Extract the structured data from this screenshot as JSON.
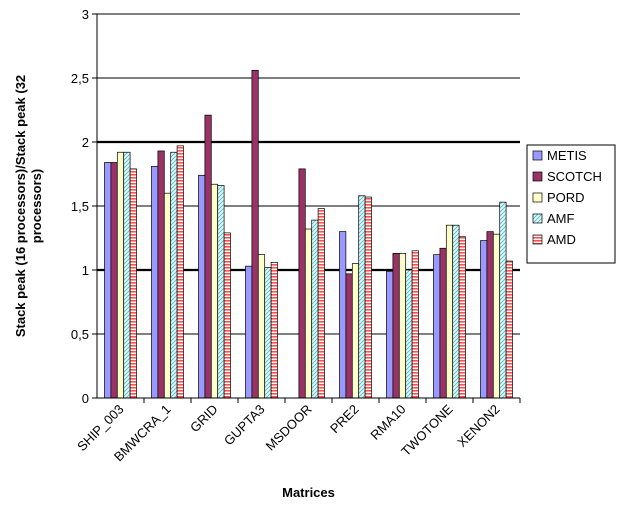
{
  "chart_data": {
    "type": "bar",
    "categories": [
      "SHIP_003",
      "BMWCRA_1",
      "GRID",
      "GUPTA3",
      "MSDOOR",
      "PRE2",
      "RMA10",
      "TWOTONE",
      "XENON2"
    ],
    "series": [
      {
        "name": "METIS",
        "values": [
          1.84,
          1.81,
          1.74,
          1.03,
          0.0,
          1.3,
          0.99,
          1.12,
          1.23
        ]
      },
      {
        "name": "SCOTCH",
        "values": [
          1.84,
          1.93,
          2.21,
          2.56,
          1.79,
          0.97,
          1.13,
          1.17,
          1.3
        ]
      },
      {
        "name": "PORD",
        "values": [
          1.92,
          1.6,
          1.67,
          1.12,
          1.32,
          1.05,
          1.13,
          1.35,
          1.28
        ]
      },
      {
        "name": "AMF",
        "values": [
          1.92,
          1.92,
          1.66,
          1.02,
          1.39,
          1.58,
          1.0,
          1.35,
          1.53
        ]
      },
      {
        "name": "AMD",
        "values": [
          1.79,
          1.97,
          1.29,
          1.06,
          1.48,
          1.57,
          1.15,
          1.26,
          1.07
        ]
      }
    ],
    "xlabel": "Matrices",
    "ylabel_lines": [
      "Stack peak (16 processors)/Stack peak (32",
      "processors)"
    ],
    "ylim": [
      0,
      3
    ],
    "yticks": [
      "0",
      "0,5",
      "1",
      "1,5",
      "2",
      "2,5",
      "3"
    ],
    "ytick_values": [
      0,
      0.5,
      1,
      1.5,
      2,
      2.5,
      3
    ],
    "bold_gridlines": [
      1,
      2
    ],
    "grid": true,
    "legend_position": "right",
    "colors": {
      "METIS": "#9999ff",
      "SCOTCH": "#993366",
      "PORD": "#ffffcc",
      "AMF": "#ccffff",
      "AMD": "#ff8080"
    },
    "patterns": {
      "METIS": "solid",
      "SCOTCH": "solid",
      "PORD": "solid",
      "AMF": "diagonal-hatch",
      "AMD": "horizontal-hatch"
    }
  }
}
